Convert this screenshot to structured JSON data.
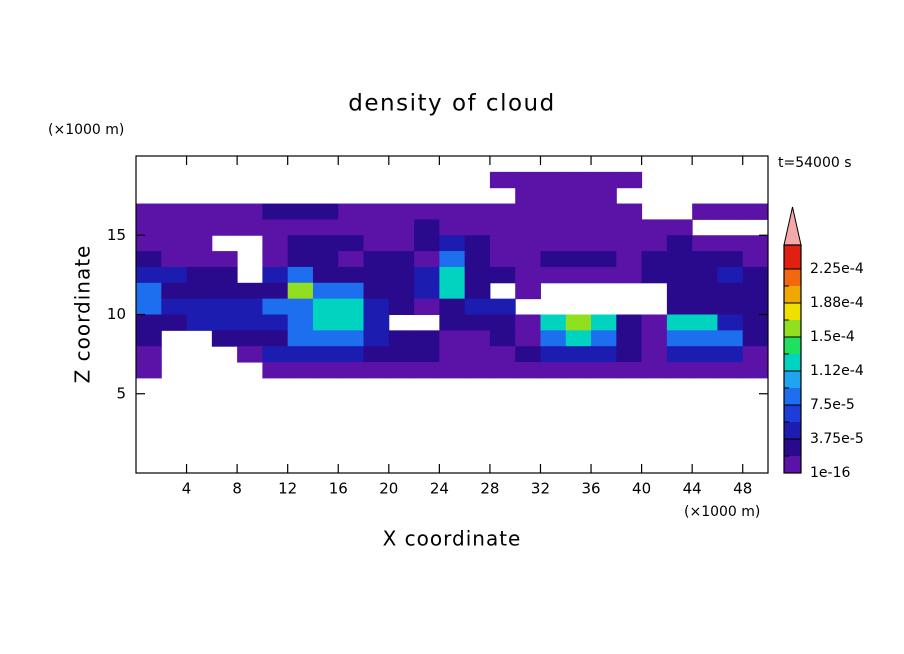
{
  "chart_data": {
    "type": "heatmap",
    "title": "density of cloud",
    "y_unit": "(×1000 m)",
    "x_unit": "(×1000 m)",
    "time_label": "t=54000 s",
    "xlabel": "X coordinate",
    "ylabel": "Z coordinate",
    "xlim": [
      0,
      50
    ],
    "ylim": [
      0,
      20
    ],
    "xticks": [
      4,
      8,
      12,
      16,
      20,
      24,
      28,
      32,
      36,
      40,
      44,
      48
    ],
    "yticks": [
      5,
      10,
      15
    ],
    "x": [
      1,
      3,
      5,
      7,
      9,
      11,
      13,
      15,
      17,
      19,
      21,
      23,
      25,
      27,
      29,
      31,
      33,
      35,
      37,
      39,
      41,
      43,
      45,
      47,
      49
    ],
    "y": [
      18.5,
      17.5,
      16.5,
      15.5,
      14.5,
      13.5,
      12.5,
      11.5,
      10.5,
      9.5,
      8.5,
      7.5,
      6.5
    ],
    "cell_width": 2,
    "cell_height": 1,
    "values": [
      [
        null,
        null,
        null,
        null,
        null,
        null,
        null,
        null,
        null,
        null,
        null,
        null,
        null,
        null,
        5e-06,
        5e-06,
        5e-06,
        5e-06,
        5e-06,
        5e-06,
        null,
        null,
        null,
        null,
        null
      ],
      [
        null,
        null,
        null,
        null,
        null,
        null,
        null,
        null,
        null,
        null,
        null,
        null,
        null,
        null,
        null,
        5e-06,
        5e-06,
        5e-06,
        5e-06,
        null,
        null,
        null,
        null,
        null,
        null
      ],
      [
        5e-06,
        5e-06,
        5e-06,
        5e-06,
        5e-06,
        2.5e-05,
        2.5e-05,
        2.5e-05,
        5e-06,
        5e-06,
        5e-06,
        5e-06,
        5e-06,
        5e-06,
        5e-06,
        5e-06,
        5e-06,
        5e-06,
        5e-06,
        5e-06,
        null,
        null,
        5e-06,
        5e-06,
        5e-06
      ],
      [
        5e-06,
        5e-06,
        5e-06,
        5e-06,
        5e-06,
        5e-06,
        5e-06,
        5e-06,
        5e-06,
        5e-06,
        5e-06,
        2.5e-05,
        5e-06,
        5e-06,
        5e-06,
        5e-06,
        5e-06,
        5e-06,
        5e-06,
        5e-06,
        5e-06,
        5e-06,
        null,
        null,
        null
      ],
      [
        5e-06,
        5e-06,
        5e-06,
        null,
        null,
        5e-06,
        2.5e-05,
        2.5e-05,
        2.5e-05,
        5e-06,
        5e-06,
        2.5e-05,
        5e-05,
        2.5e-05,
        5e-06,
        5e-06,
        5e-06,
        5e-06,
        5e-06,
        5e-06,
        5e-06,
        2.5e-05,
        5e-06,
        5e-06,
        5e-06
      ],
      [
        2.5e-05,
        5e-06,
        5e-06,
        5e-06,
        null,
        5e-06,
        2.5e-05,
        2.5e-05,
        5e-06,
        2.5e-05,
        2.5e-05,
        5e-06,
        8.5e-05,
        2.5e-05,
        5e-06,
        5e-06,
        2.5e-05,
        2.5e-05,
        2.5e-05,
        5e-06,
        2.5e-05,
        2.5e-05,
        2.5e-05,
        2.5e-05,
        5e-06
      ],
      [
        5e-05,
        5e-05,
        2.5e-05,
        2.5e-05,
        null,
        5e-05,
        8.5e-05,
        2.5e-05,
        2.5e-05,
        2.5e-05,
        2.5e-05,
        5e-05,
        0.00012,
        2.5e-05,
        2.5e-05,
        5e-06,
        5e-06,
        5e-06,
        5e-06,
        5e-06,
        2.5e-05,
        2.5e-05,
        2.5e-05,
        5e-05,
        2.5e-05
      ],
      [
        8.5e-05,
        2.5e-05,
        2.5e-05,
        2.5e-05,
        2.5e-05,
        2.5e-05,
        0.00016,
        8.5e-05,
        8.5e-05,
        2.5e-05,
        2.5e-05,
        5e-05,
        0.00012,
        2.5e-05,
        null,
        5e-06,
        null,
        null,
        null,
        null,
        null,
        2.5e-05,
        2.5e-05,
        2.5e-05,
        2.5e-05
      ],
      [
        8.5e-05,
        5e-05,
        5e-05,
        5e-05,
        5e-05,
        8.5e-05,
        8.5e-05,
        0.00012,
        0.00012,
        5e-05,
        2.5e-05,
        5e-06,
        2.5e-05,
        5e-05,
        5e-05,
        null,
        null,
        null,
        null,
        null,
        null,
        2.5e-05,
        2.5e-05,
        2.5e-05,
        2.5e-05
      ],
      [
        2.5e-05,
        2.5e-05,
        5e-05,
        5e-05,
        5e-05,
        5e-05,
        8.5e-05,
        0.00012,
        0.00012,
        5e-05,
        null,
        null,
        2.5e-05,
        2.5e-05,
        2.5e-05,
        5e-06,
        0.00012,
        0.00016,
        0.00012,
        2.5e-05,
        5e-06,
        0.00012,
        0.00012,
        5e-05,
        2.5e-05
      ],
      [
        2.5e-05,
        null,
        null,
        2.5e-05,
        2.5e-05,
        2.5e-05,
        8.5e-05,
        8.5e-05,
        8.5e-05,
        5e-05,
        2.5e-05,
        2.5e-05,
        5e-06,
        5e-06,
        2.5e-05,
        5e-06,
        8.5e-05,
        0.00012,
        8.5e-05,
        2.5e-05,
        5e-06,
        8.5e-05,
        8.5e-05,
        8.5e-05,
        2.5e-05
      ],
      [
        5e-06,
        null,
        null,
        null,
        5e-06,
        5e-05,
        5e-05,
        5e-05,
        5e-05,
        2.5e-05,
        2.5e-05,
        2.5e-05,
        5e-06,
        5e-06,
        5e-06,
        2.5e-05,
        5e-05,
        5e-05,
        5e-05,
        2.5e-05,
        5e-06,
        5e-05,
        5e-05,
        5e-05,
        5e-06
      ],
      [
        5e-06,
        null,
        null,
        null,
        null,
        5e-06,
        5e-06,
        5e-06,
        5e-06,
        5e-06,
        5e-06,
        5e-06,
        5e-06,
        5e-06,
        5e-06,
        5e-06,
        5e-06,
        5e-06,
        5e-06,
        5e-06,
        5e-06,
        5e-06,
        5e-06,
        5e-06,
        5e-06
      ]
    ],
    "levels": [
      {
        "value": 1e-16,
        "label": "1e-16"
      },
      1.875e-05,
      {
        "value": 3.75e-05,
        "label": "3.75e-5"
      },
      5.625e-05,
      {
        "value": 7.5e-05,
        "label": "7.5e-5"
      },
      9.375e-05,
      {
        "value": 0.0001125,
        "label": "1.12e-4"
      },
      0.00013125,
      {
        "value": 0.00015,
        "label": "1.5e-4"
      },
      0.00016875,
      {
        "value": 0.0001875,
        "label": "1.88e-4"
      },
      0.00020625,
      {
        "value": 0.000225,
        "label": "2.25e-4"
      }
    ],
    "colors": [
      "#5b12a6",
      "#2a0a8c",
      "#1c1cb0",
      "#1e3cd8",
      "#1e6ef0",
      "#1ea4f0",
      "#00d4c0",
      "#20e060",
      "#90e020",
      "#f0e000",
      "#f0a800",
      "#f06810",
      "#e02010"
    ],
    "extend_color": "#f4a8a8"
  }
}
